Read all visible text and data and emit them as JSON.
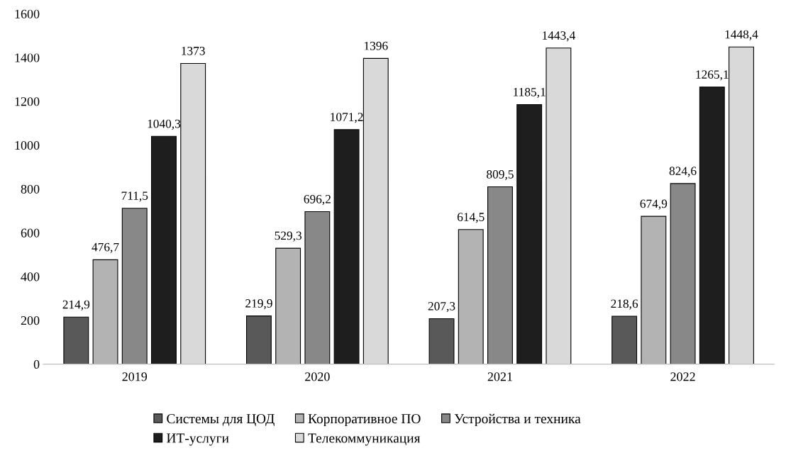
{
  "chart_data": {
    "type": "bar",
    "categories": [
      "2019",
      "2020",
      "2021",
      "2022"
    ],
    "series": [
      {
        "name": "Системы для ЦОД",
        "color": "#595959",
        "values": [
          214.9,
          219.9,
          207.3,
          218.6
        ],
        "value_labels": [
          "214,9",
          "219,9",
          "207,3",
          "218,6"
        ]
      },
      {
        "name": "Корпоративное ПО",
        "color": "#b3b3b3",
        "values": [
          476.7,
          529.3,
          614.5,
          674.9
        ],
        "value_labels": [
          "476,7",
          "529,3",
          "614,5",
          "674,9"
        ]
      },
      {
        "name": "Устройства и техника",
        "color": "#888888",
        "values": [
          711.5,
          696.2,
          809.5,
          824.6
        ],
        "value_labels": [
          "711,5",
          "696,2",
          "809,5",
          "824,6"
        ]
      },
      {
        "name": "ИТ-услуги",
        "color": "#1e1e1e",
        "values": [
          1040.3,
          1071.2,
          1185.1,
          1265.1
        ],
        "value_labels": [
          "1040,3",
          "1071,2",
          "1185,1",
          "1265,1"
        ]
      },
      {
        "name": "Телекоммуникация",
        "color": "#d9d9d9",
        "values": [
          1373,
          1396,
          1443.4,
          1448.4
        ],
        "value_labels": [
          "1373",
          "1396",
          "1443,4",
          "1448,4"
        ]
      }
    ],
    "ylim": [
      0,
      1600
    ],
    "yticks": [
      0,
      200,
      400,
      600,
      800,
      1000,
      1200,
      1400,
      1600
    ],
    "grid": false,
    "legend": "bottom"
  }
}
